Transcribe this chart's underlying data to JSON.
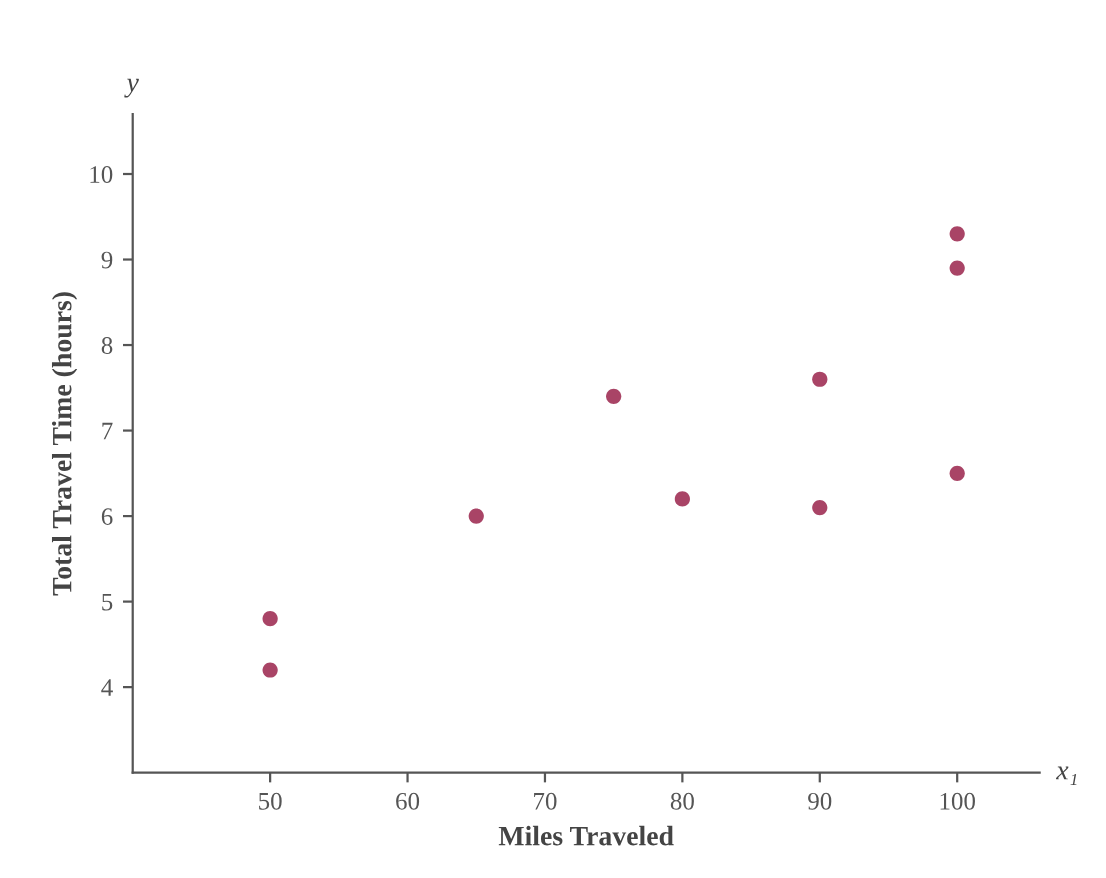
{
  "chart_data": {
    "type": "scatter",
    "xlabel": "Miles Traveled",
    "ylabel": "Total Travel Time (hours)",
    "annotations": [
      "y",
      "x₁"
    ],
    "x": [
      100,
      50,
      100,
      100,
      50,
      80,
      75,
      65,
      90,
      90
    ],
    "values": [
      9.3,
      4.8,
      8.9,
      6.5,
      4.2,
      6.2,
      7.4,
      6.0,
      7.6,
      6.1
    ],
    "color": "#a94466",
    "marker": "circle",
    "xlim": [
      40,
      106
    ],
    "ylim": [
      3,
      10.7
    ],
    "xticks": [
      50,
      60,
      70,
      80,
      90,
      100
    ],
    "yticks": [
      4,
      5,
      6,
      7,
      8,
      9,
      10
    ],
    "grid": false,
    "legend": false
  }
}
